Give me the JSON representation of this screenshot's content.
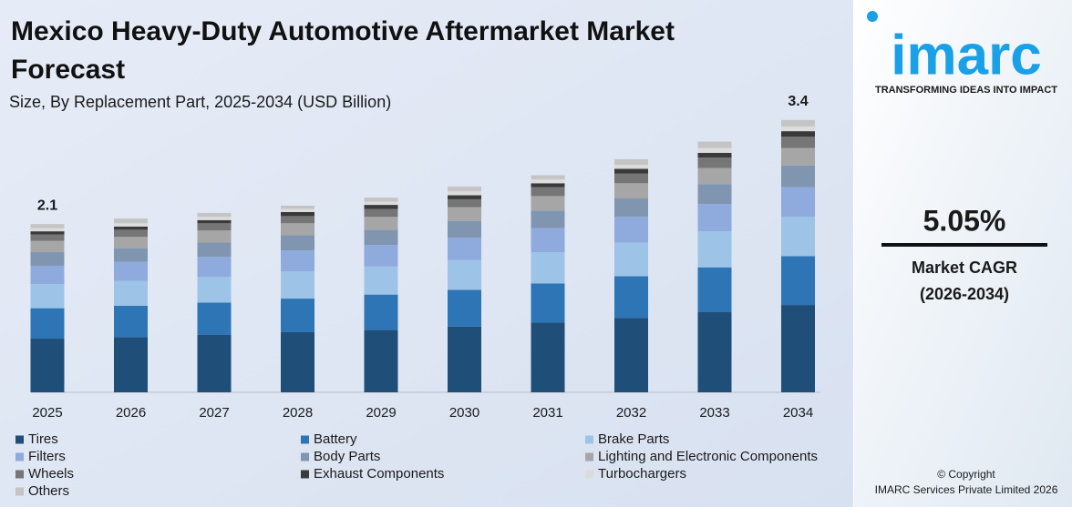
{
  "chart_data": {
    "type": "stacked_bar",
    "title": "Mexico Heavy-Duty Automotive Aftermarket Market Forecast",
    "subtitle": "Size, By Replacement Part, 2025-2034 (USD Billion)",
    "categories": [
      "2025",
      "2026",
      "2027",
      "2028",
      "2029",
      "2030",
      "2031",
      "2032",
      "2033",
      "2034"
    ],
    "series": [
      {
        "name": "Tires",
        "color": "#1f4e79",
        "values": [
          0.67,
          0.69,
          0.72,
          0.75,
          0.78,
          0.82,
          0.87,
          0.93,
          1.0,
          1.09
        ]
      },
      {
        "name": "Battery",
        "color": "#2e75b6",
        "values": [
          0.38,
          0.39,
          0.4,
          0.42,
          0.44,
          0.46,
          0.49,
          0.52,
          0.56,
          0.61
        ]
      },
      {
        "name": "Brake Parts",
        "color": "#9dc3e6",
        "values": [
          0.3,
          0.31,
          0.32,
          0.34,
          0.35,
          0.37,
          0.39,
          0.42,
          0.45,
          0.49
        ]
      },
      {
        "name": "Filters",
        "color": "#8faadc",
        "values": [
          0.23,
          0.24,
          0.25,
          0.26,
          0.27,
          0.28,
          0.3,
          0.32,
          0.34,
          0.37
        ]
      },
      {
        "name": "Body Parts",
        "color": "#8096b0",
        "values": [
          0.17,
          0.17,
          0.18,
          0.19,
          0.19,
          0.21,
          0.22,
          0.23,
          0.25,
          0.27
        ]
      },
      {
        "name": "Lighting and Electronic Components",
        "color": "#a6a6a6",
        "values": [
          0.14,
          0.14,
          0.15,
          0.15,
          0.16,
          0.17,
          0.18,
          0.19,
          0.2,
          0.22
        ]
      },
      {
        "name": "Wheels",
        "color": "#767676",
        "values": [
          0.08,
          0.09,
          0.09,
          0.09,
          0.1,
          0.1,
          0.11,
          0.12,
          0.13,
          0.14
        ]
      },
      {
        "name": "Exhaust Components",
        "color": "#3a3a3a",
        "values": [
          0.04,
          0.04,
          0.04,
          0.05,
          0.05,
          0.05,
          0.05,
          0.06,
          0.06,
          0.07
        ]
      },
      {
        "name": "Turbochargers",
        "color": "#dcdcdc",
        "values": [
          0.04,
          0.04,
          0.04,
          0.04,
          0.04,
          0.05,
          0.05,
          0.05,
          0.06,
          0.06
        ]
      },
      {
        "name": "Others",
        "color": "#c4c4c4",
        "values": [
          0.05,
          0.06,
          0.05,
          0.04,
          0.05,
          0.06,
          0.05,
          0.07,
          0.08,
          0.08
        ]
      }
    ],
    "annotations": [
      {
        "category": "2025",
        "value": 2.1
      },
      {
        "category": "2034",
        "value": 3.4
      }
    ]
  },
  "sidebar": {
    "logo": "imarc",
    "tagline": "TRANSFORMING IDEAS INTO IMPACT",
    "cagr": "5.05%",
    "cagr_label": "Market CAGR",
    "cagr_period": "(2026-2034)",
    "copyright": "© Copyright",
    "company": "IMARC Services Private Limited 2026"
  }
}
